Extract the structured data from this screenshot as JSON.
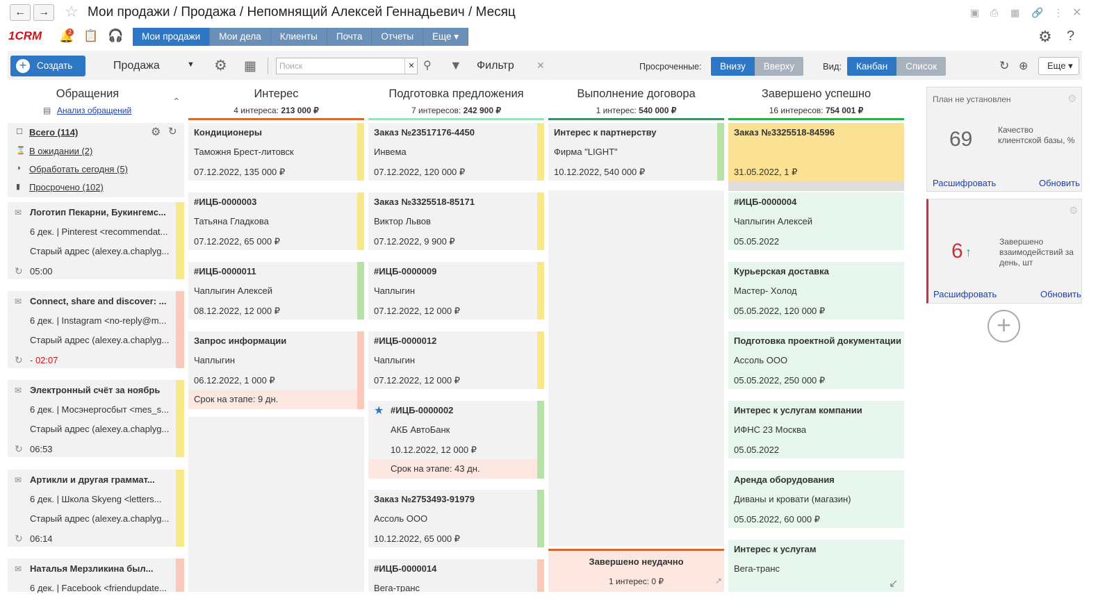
{
  "window": {
    "title": "Мои продажи / Продажа / Непомнящий Алексей Геннадьевич / Месяц"
  },
  "menu": {
    "logo": "1CRM",
    "badge": "2",
    "items": [
      "Мои продажи",
      "Мои дела",
      "Клиенты",
      "Почта",
      "Отчеты",
      "Еще ▾"
    ]
  },
  "toolbar": {
    "create": "Создать",
    "entity": "Продажа",
    "search_placeholder": "Поиск",
    "filter": "Фильтр",
    "overdue_label": "Просроченные:",
    "overdue_opts": [
      "Внизу",
      "Вверху"
    ],
    "view_label": "Вид:",
    "view_opts": [
      "Канбан",
      "Список"
    ],
    "more": "Еще"
  },
  "left": {
    "title": "Обращения",
    "analysis": "Анализ обращений",
    "filters": [
      "Всего (114)",
      "В ожидании (2)",
      "Обработать сегодня (5)",
      "Просрочено (102)"
    ],
    "items": [
      {
        "subject": "Логотип Пекарни, Букингемс...",
        "from": "6 дек. | Pinterest <recommendat...",
        "addr": "Старый адрес (alexey.a.chaplyg...",
        "time": "05:00",
        "color": "#f7e98a",
        "late": false
      },
      {
        "subject": "Connect, share and discover: ...",
        "from": "6 дек. | Instagram <no-reply@m...",
        "addr": "Старый адрес (alexey.a.chaplyg...",
        "time": "- 02:07",
        "color": "#fac9b9",
        "late": true
      },
      {
        "subject": "Электронный счёт за ноябрь",
        "from": "6 дек. | Мосэнергосбыт <mes_s...",
        "addr": "Старый адрес (alexey.a.chaplyg...",
        "time": "06:53",
        "color": "#f7e98a",
        "late": false
      },
      {
        "subject": "Артикли и другая граммат...",
        "from": "6 дек. | Школа Skyeng <letters...",
        "addr": "Старый адрес (alexey.a.chaplyg...",
        "time": "06:14",
        "color": "#f7e98a",
        "late": false
      },
      {
        "subject": "Наталья Мерзликина был...",
        "from": "6 дек. | Facebook <friendupdate...",
        "addr": "",
        "time": "",
        "color": "#fac9b9",
        "late": false
      }
    ]
  },
  "columns": [
    {
      "title": "Интерес",
      "sub_count": "4 интереса:",
      "sub_sum": "213 000 ₽",
      "bar": "#d9662b"
    },
    {
      "title": "Подготовка предложения",
      "sub_count": "7 интересов:",
      "sub_sum": "242 900 ₽",
      "bar": "#9de0c0"
    },
    {
      "title": "Выполнение договора",
      "sub_count": "1 интерес:",
      "sub_sum": "540 000 ₽",
      "bar": "#3d8f6a"
    },
    {
      "title": "Завершено успешно",
      "sub_count": "16 интересов:",
      "sub_sum": "754 001 ₽",
      "bar": "#2bb04a"
    }
  ],
  "cards": {
    "c0": [
      {
        "t": "Кондиционеры",
        "c": "Таможня Брест-литовск",
        "d": "07.12.2022, 135 000 ₽"
      },
      {
        "t": "#ИЦБ-0000003",
        "c": "Татьяна Гладкова",
        "d": "07.12.2022, 65 000 ₽"
      },
      {
        "t": "#ИЦБ-0000011",
        "c": "Чаплыгин Алексей",
        "d": "08.12.2022, 12 000 ₽"
      },
      {
        "t": "Запрос информации",
        "c": "Чаплыгин",
        "d": "06.12.2022, 1 000 ₽",
        "due": "Срок на этапе: 9 дн."
      }
    ],
    "c1": [
      {
        "t": "Заказ №23517176-4450",
        "c": "Инвема",
        "d": "07.12.2022, 120 000 ₽"
      },
      {
        "t": "Заказ №3325518-85171",
        "c": "Виктор Львов",
        "d": "07.12.2022, 9 900 ₽"
      },
      {
        "t": "#ИЦБ-0000009",
        "c": "Чаплыгин",
        "d": "07.12.2022, 12 000 ₽"
      },
      {
        "t": "#ИЦБ-0000012",
        "c": "Чаплыгин",
        "d": "07.12.2022, 12 000 ₽"
      },
      {
        "t": "#ИЦБ-0000002",
        "c": "АКБ АвтоБанк",
        "d": "10.12.2022, 12 000 ₽",
        "due": "Срок на этапе: 43 дн."
      },
      {
        "t": "Заказ №2753493-91979",
        "c": "Ассоль ООО",
        "d": "10.12.2022, 65 000 ₽"
      },
      {
        "t": "#ИЦБ-0000014",
        "c": "Вега-транс",
        "d": ""
      }
    ],
    "c2": [
      {
        "t": "Интерес к партнерству",
        "c": "Фирма \"LIGHT\"",
        "d": "10.12.2022, 540 000 ₽"
      }
    ],
    "c3": [
      {
        "t": "Заказ №3325518-84596",
        "c": "",
        "d": "31.05.2022, 1 ₽"
      },
      {
        "t": "#ИЦБ-0000004",
        "c": "Чаплыгин Алексей",
        "d": "05.05.2022"
      },
      {
        "t": "Курьерская доставка",
        "c": "Мастер- Холод",
        "d": "05.05.2022, 120 000 ₽"
      },
      {
        "t": "Подготовка проектной документации",
        "c": "Ассоль ООО",
        "d": "05.05.2022, 250 000 ₽"
      },
      {
        "t": "Интерес к услугам компании",
        "c": "ИФНС 23 Москва",
        "d": "05.05.2022"
      },
      {
        "t": "Аренда оборудования",
        "c": "Диваны и кровати (магазин)",
        "d": "05.05.2022, 60 000 ₽"
      },
      {
        "t": "Интерес к услугам",
        "c": "Вега-транс",
        "d": ""
      }
    ]
  },
  "lost": {
    "title": "Завершено неудачно",
    "sub": "1 интерес: 0 ₽"
  },
  "widgets": [
    {
      "head": "План не установлен",
      "value": "69",
      "label": "Качество клиентской базы, %",
      "decode": "Расшифровать",
      "refresh": "Обновить"
    },
    {
      "head": "",
      "value": "6",
      "arrow": "↑",
      "label": "Завершено взаимодействий за день, шт",
      "decode": "Расшифровать",
      "refresh": "Обновить"
    }
  ]
}
